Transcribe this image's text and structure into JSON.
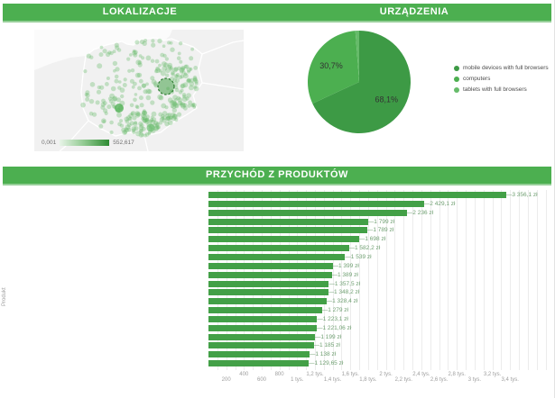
{
  "titles": {
    "localization": "LOKALIZACJE",
    "devices": "URZĄDZENIA",
    "revenue": "PRZYCHÓD Z PRODUKTÓW"
  },
  "map": {
    "legend_min": "0,001",
    "legend_max": "552,617",
    "dot_color": "#66bb6a",
    "highlight_color": "#43a047"
  },
  "chart_data": [
    {
      "type": "pie",
      "title": "URZĄDZENIA",
      "labels": [
        "mobile devices with full browsers",
        "computers",
        "tablets with full browsers"
      ],
      "values": [
        68.1,
        30.7,
        1.2
      ],
      "slice_labels": [
        "68,1%",
        "30,7%",
        ""
      ],
      "colors": [
        "#3d9a45",
        "#4caf50",
        "#66bb6a"
      ],
      "legend_position": "right"
    },
    {
      "type": "bar",
      "orientation": "horizontal",
      "title": "PRZYCHÓD Z PRODUKTÓW",
      "ylabel": "Produkt",
      "unit": "zł",
      "bar_color": "#43a047",
      "xlim": [
        0,
        3400
      ],
      "grid": true,
      "values": [
        3356.1,
        2429.1,
        2236,
        1799,
        1789,
        1698,
        1582.2,
        1539,
        1399,
        1389,
        1357.5,
        1348.2,
        1328.4,
        1279,
        1223.1,
        1221.06,
        1199,
        1185,
        1138,
        1129.65
      ],
      "value_labels": [
        "3 356,1 zł",
        "2 429,1 zł",
        "2 236 zł",
        "1 799 zł",
        "1 789 zł",
        "1 698 zł",
        "1 582,2 zł",
        "1 539 zł",
        "1 399 zł",
        "1 389 zł",
        "1 357,5 zł",
        "1 348,2 zł",
        "1 328,4 zł",
        "1 279 zł",
        "1 223,1 zł",
        "1 221,06 zł",
        "1 199 zł",
        "1 185 zł",
        "1 138 zł",
        "1 129,65 zł"
      ],
      "xticks": [
        {
          "value": 200,
          "label": "200"
        },
        {
          "value": 400,
          "label": "400"
        },
        {
          "value": 600,
          "label": "600"
        },
        {
          "value": 800,
          "label": "800"
        },
        {
          "value": 1000,
          "label": "1 tys."
        },
        {
          "value": 1200,
          "label": "1,2 tys."
        },
        {
          "value": 1400,
          "label": "1,4 tys."
        },
        {
          "value": 1600,
          "label": "1,6 tys."
        },
        {
          "value": 1800,
          "label": "1,8 tys."
        },
        {
          "value": 2000,
          "label": "2 tys."
        },
        {
          "value": 2200,
          "label": "2,2 tys."
        },
        {
          "value": 2400,
          "label": "2,4 tys."
        },
        {
          "value": 2600,
          "label": "2,6 tys."
        },
        {
          "value": 2800,
          "label": "2,8 tys."
        },
        {
          "value": 3000,
          "label": "3 tys."
        },
        {
          "value": 3200,
          "label": "3,2 tys."
        },
        {
          "value": 3400,
          "label": "3,4 tys."
        }
      ]
    }
  ]
}
